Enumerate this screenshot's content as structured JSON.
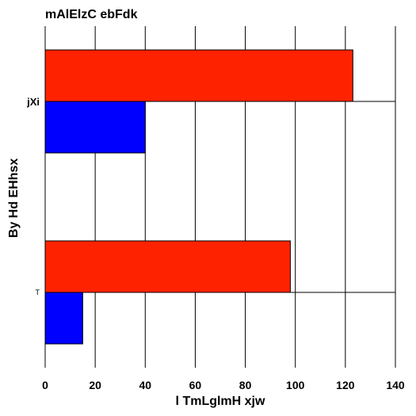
{
  "chart_data": {
    "type": "bar",
    "orientation": "horizontal",
    "title": "mAlElzC ebFdk",
    "xlabel": "l TmLglmH xjw",
    "ylabel": "By Hd EHhsx",
    "categories": [
      "jXi",
      "T"
    ],
    "series": [
      {
        "values": [
          123,
          98
        ],
        "color": "#ff2200"
      },
      {
        "values": [
          40,
          15
        ],
        "color": "#0000ff"
      }
    ],
    "xlim": [
      0,
      140
    ],
    "xticks": [
      0,
      20,
      40,
      60,
      80,
      100,
      120,
      140
    ],
    "grid": "vertical"
  }
}
